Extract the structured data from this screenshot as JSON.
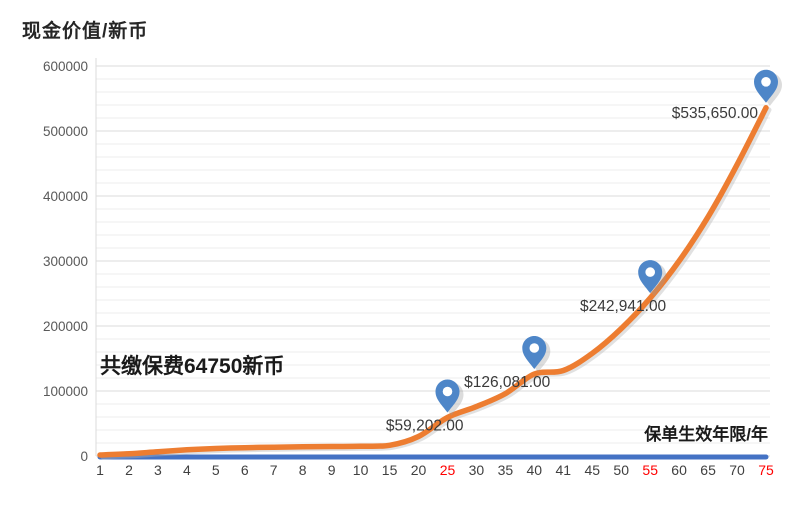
{
  "title": "现金价值/新币",
  "annotation": "共缴保费64750新币",
  "x_axis_title": "保单生效年限/年",
  "colors": {
    "background": "#FFFFFF",
    "curve": "#ED7D31",
    "curve_shadow": "#B5B5B5",
    "baseline": "#4472C4",
    "pin": "#4E86C8",
    "pin_hole": "#FFFFFF",
    "pin_shadow": "#9A9A9A",
    "red_tick": "#FF0000",
    "y_tick_text": "#595959",
    "x_tick_text": "#404040",
    "label_text": "#3A3A3A",
    "grid_minor": "#ECECEC",
    "grid_major": "#DBDBDB"
  },
  "chart_data": {
    "type": "line",
    "title": "现金价值/新币",
    "xlabel": "保单生效年限/年",
    "ylabel": "现金价值/新币",
    "ylim": [
      0,
      600000
    ],
    "y_major": 100000,
    "y_minor": 20000,
    "grid": true,
    "legend": "none",
    "y_ticks": [
      "0",
      "100000",
      "200000",
      "300000",
      "400000",
      "500000",
      "600000"
    ],
    "categories": [
      "1",
      "2",
      "3",
      "4",
      "5",
      "6",
      "7",
      "8",
      "9",
      "10",
      "15",
      "20",
      "25",
      "30",
      "35",
      "40",
      "41",
      "45",
      "50",
      "55",
      "60",
      "65",
      "70",
      "75"
    ],
    "red_categories": [
      "25",
      "55",
      "75"
    ],
    "series": [
      {
        "id": "cash_value",
        "label": "现金价值",
        "color": "#ED7D31",
        "values": [
          1500,
          3500,
          6500,
          9500,
          11500,
          12800,
          13600,
          14200,
          14600,
          15000,
          16500,
          30000,
          59202,
          76000,
          96000,
          126081,
          131500,
          158000,
          196000,
          242941,
          300000,
          368000,
          448000,
          535650
        ]
      },
      {
        "id": "baseline",
        "label": "",
        "color": "#4472C4",
        "values": [
          0,
          0,
          0,
          0,
          0,
          0,
          0,
          0,
          0,
          0,
          0,
          0,
          0,
          0,
          0,
          0,
          0,
          0,
          0,
          0,
          0,
          0,
          0,
          0
        ]
      }
    ],
    "milestones": [
      {
        "category": "25",
        "value": 59202,
        "label": "$59,202.00"
      },
      {
        "category": "40",
        "value": 126081,
        "label": "$126,081.00"
      },
      {
        "category": "55",
        "value": 242941,
        "label": "$242,941.00"
      },
      {
        "category": "75",
        "value": 535650,
        "label": "$535,650.00"
      }
    ],
    "annotation": "共缴保费64750新币"
  }
}
